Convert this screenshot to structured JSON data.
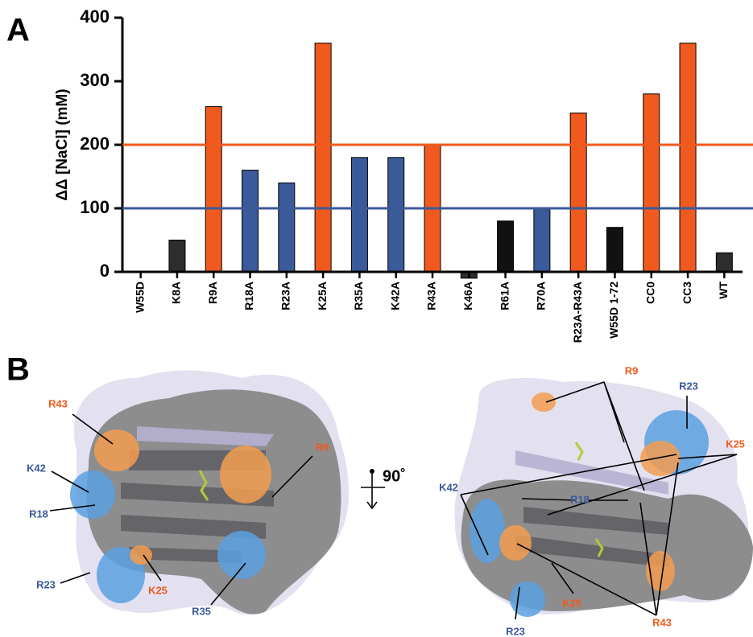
{
  "panels": {
    "a_label": "A",
    "b_label": "B"
  },
  "chart_data": {
    "type": "bar",
    "y_label": "ΔΔ [NaCl] (mM)",
    "categories": [
      "W55D",
      "K8A",
      "R9A",
      "R18A",
      "R23A",
      "K25A",
      "R35A",
      "K42A",
      "R43A",
      "K46A",
      "R61A",
      "R70A",
      "R23A-R43A",
      "W55D 1-72",
      "CC0",
      "CC3",
      "WT"
    ],
    "values": [
      0,
      50,
      260,
      160,
      140,
      360,
      180,
      180,
      200,
      -10,
      80,
      100,
      250,
      70,
      280,
      360,
      30
    ],
    "colors": [
      "#2d2d2d",
      "#2d2d2d",
      "#f05a1e",
      "#3b5a99",
      "#3b5a99",
      "#f05a1e",
      "#3b5a99",
      "#3b5a99",
      "#f05a1e",
      "#2d2d2d",
      "#111111",
      "#3b5a99",
      "#f05a1e",
      "#111111",
      "#f05a1e",
      "#f05a1e",
      "#2d2d2d"
    ],
    "ylim": [
      0,
      400
    ],
    "yticks": [
      0,
      100,
      200,
      300,
      400
    ],
    "reference_lines": [
      {
        "value": 200,
        "color": "#f05a1e"
      },
      {
        "value": 100,
        "color": "#3b5a99"
      }
    ]
  },
  "rotation_label": "90˚",
  "structure_labels": [
    {
      "text": "R43",
      "color": "#f05a1e"
    },
    {
      "text": "K42",
      "color": "#3b5a99"
    },
    {
      "text": "R18",
      "color": "#3b5a99"
    },
    {
      "text": "R23",
      "color": "#3b5a99"
    },
    {
      "text": "K25",
      "color": "#f05a1e"
    },
    {
      "text": "R35",
      "color": "#3b5a99"
    },
    {
      "text": "R9",
      "color": "#f05a1e"
    },
    {
      "text": "R9",
      "color": "#f05a1e"
    },
    {
      "text": "R23",
      "color": "#3b5a99"
    },
    {
      "text": "K25",
      "color": "#f05a1e"
    },
    {
      "text": "K42",
      "color": "#3b5a99"
    },
    {
      "text": "R18",
      "color": "#3b5a99"
    },
    {
      "text": "K25",
      "color": "#f05a1e"
    },
    {
      "text": "R23",
      "color": "#3b5a99"
    },
    {
      "text": "R43",
      "color": "#f05a1e"
    }
  ]
}
